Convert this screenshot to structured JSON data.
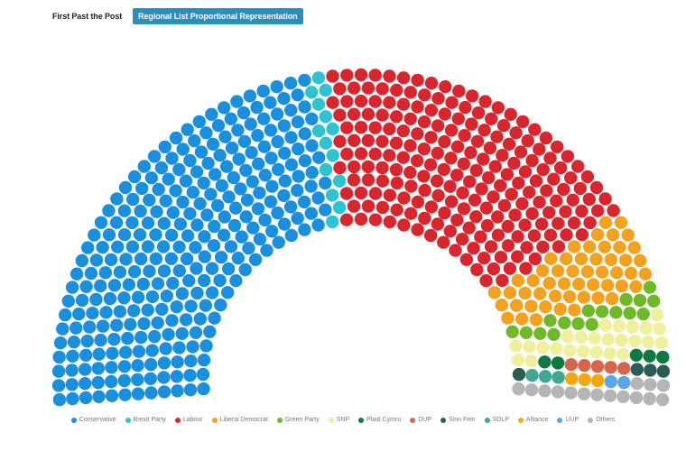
{
  "tabs": [
    {
      "label": "First Past the Post",
      "active": false
    },
    {
      "label": "Regional List Proportional Representation",
      "active": true
    }
  ],
  "chart_data": {
    "type": "parliament",
    "title": "",
    "total_seats": 650,
    "parties": [
      {
        "name": "Conservative",
        "seats": 290,
        "color": "#1a8fdd"
      },
      {
        "name": "Brexit Party",
        "seats": 14,
        "color": "#2ec3d1"
      },
      {
        "name": "Labour",
        "seats": 215,
        "color": "#d9262e"
      },
      {
        "name": "Liberal Democrat",
        "seats": 52,
        "color": "#f4a11f"
      },
      {
        "name": "Green Party",
        "seats": 17,
        "color": "#6fb929"
      },
      {
        "name": "SNP",
        "seats": 25,
        "color": "#efef9e"
      },
      {
        "name": "Plaid Cymru",
        "seats": 5,
        "color": "#0e7a42"
      },
      {
        "name": "DUP",
        "seats": 5,
        "color": "#d6654d"
      },
      {
        "name": "Sinn Fein",
        "seats": 4,
        "color": "#2c5c55"
      },
      {
        "name": "SDLP",
        "seats": 3,
        "color": "#3ea892"
      },
      {
        "name": "Alliance",
        "seats": 3,
        "color": "#f6a70e"
      },
      {
        "name": "UUP",
        "seats": 2,
        "color": "#5ba6e6"
      },
      {
        "name": "Others",
        "seats": 15,
        "color": "#b5b5b5"
      }
    ]
  }
}
